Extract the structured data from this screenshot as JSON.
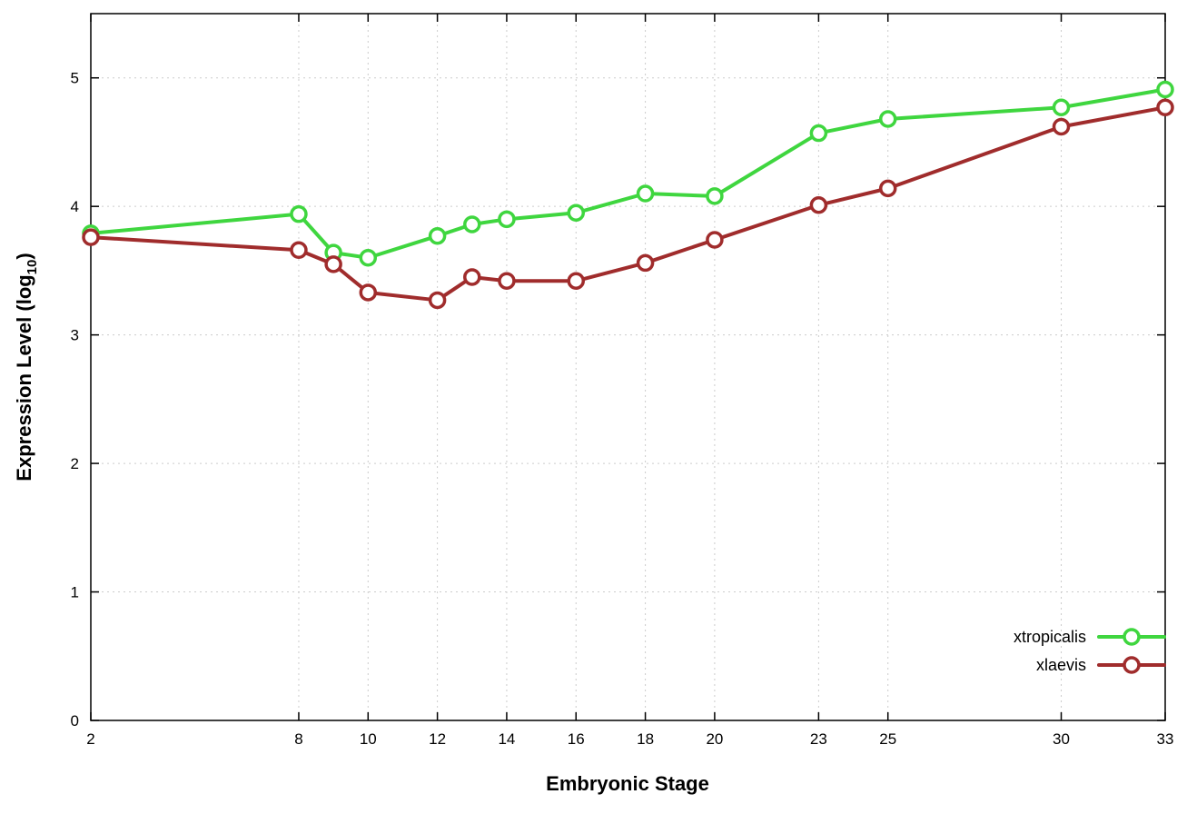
{
  "chart_data": {
    "type": "line",
    "title": "",
    "xlabel": "Embryonic Stage",
    "ylabel_main": "Expression Level (log",
    "ylabel_sub": "10",
    "ylabel_close": ")",
    "xlim": [
      2,
      33
    ],
    "ylim": [
      0,
      5.5
    ],
    "xticks": [
      2,
      8,
      10,
      12,
      14,
      16,
      18,
      20,
      23,
      25,
      30,
      33
    ],
    "yticks": [
      0,
      1,
      2,
      3,
      4,
      5
    ],
    "x": [
      2,
      8,
      9,
      10,
      12,
      13,
      14,
      16,
      18,
      20,
      23,
      25,
      30,
      33
    ],
    "series": [
      {
        "name": "xtropicalis",
        "color": "#3fd63f",
        "values": [
          3.79,
          3.94,
          3.64,
          3.6,
          3.77,
          3.86,
          3.9,
          3.95,
          4.1,
          4.08,
          4.57,
          4.68,
          4.77,
          4.91
        ]
      },
      {
        "name": "xlaevis",
        "color": "#a02c2c",
        "values": [
          3.76,
          3.66,
          3.55,
          3.33,
          3.27,
          3.45,
          3.42,
          3.42,
          3.56,
          3.74,
          4.01,
          4.14,
          4.62,
          4.77
        ]
      }
    ],
    "grid": true,
    "legend_position": "inside-right-bottom",
    "colors": {
      "grid": "#cccccc",
      "border": "#000000",
      "background": "#ffffff",
      "marker_fill": "#ffffff"
    }
  }
}
